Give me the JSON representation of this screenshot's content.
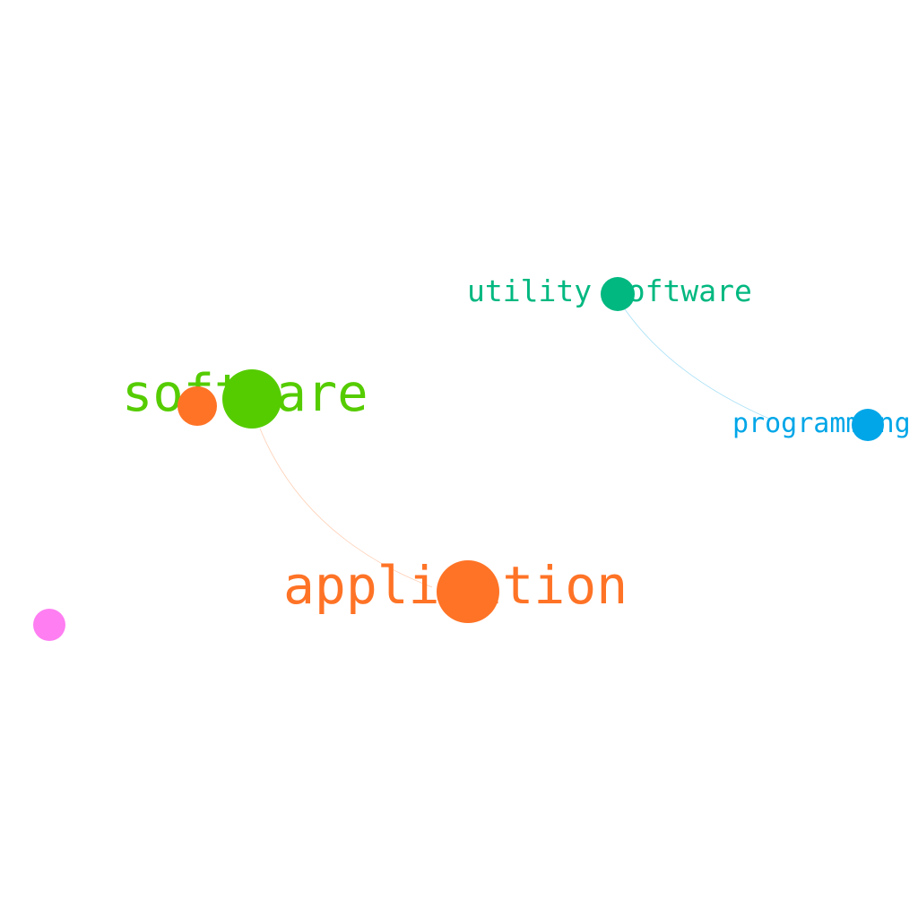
{
  "graph": {
    "nodes": [
      {
        "id": "software",
        "label": "software",
        "color": "#55cc00"
      },
      {
        "id": "software-child",
        "label": "",
        "color": "#ff7326"
      },
      {
        "id": "application",
        "label": "application",
        "color": "#ff7326"
      },
      {
        "id": "utility-software",
        "label": "utility software",
        "color": "#00b880"
      },
      {
        "id": "programming",
        "label": "programming",
        "color": "#00a6e8"
      },
      {
        "id": "isolated",
        "label": "",
        "color": "#ff7ef2"
      }
    ],
    "edges": [
      {
        "source": "software",
        "target": "application",
        "color": "#ff7326"
      },
      {
        "source": "utility-software",
        "target": "programming",
        "color": "#00a6e8"
      }
    ]
  }
}
